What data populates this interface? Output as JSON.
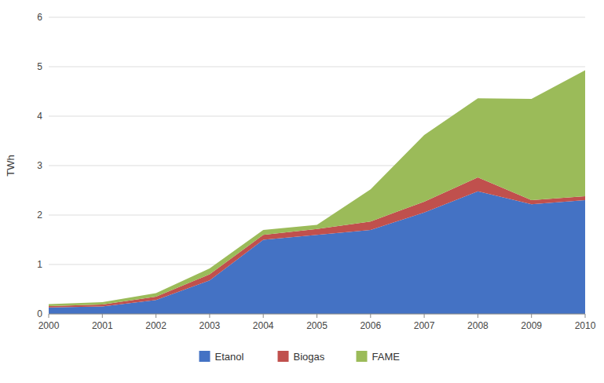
{
  "chart_data": {
    "type": "area",
    "stacked": true,
    "y_label": "TWh",
    "x": [
      2000,
      2001,
      2002,
      2003,
      2004,
      2005,
      2006,
      2007,
      2008,
      2009,
      2010
    ],
    "series": [
      {
        "name": "Etanol",
        "color": "#4472C4",
        "values": [
          0.13,
          0.15,
          0.28,
          0.68,
          1.5,
          1.6,
          1.7,
          2.05,
          2.48,
          2.22,
          2.3
        ]
      },
      {
        "name": "Biogas",
        "color": "#C0504D",
        "values": [
          0.03,
          0.04,
          0.07,
          0.12,
          0.1,
          0.12,
          0.17,
          0.22,
          0.28,
          0.08,
          0.08
        ]
      },
      {
        "name": "FAME",
        "color": "#9BBB59",
        "values": [
          0.04,
          0.05,
          0.07,
          0.12,
          0.1,
          0.08,
          0.65,
          1.35,
          1.6,
          2.05,
          2.55
        ]
      }
    ],
    "xlim": [
      2000,
      2010
    ],
    "xticks": [
      2000,
      2001,
      2002,
      2003,
      2004,
      2005,
      2006,
      2007,
      2008,
      2009,
      2010
    ],
    "ylim": [
      0,
      6
    ],
    "yticks": [
      0,
      1,
      2,
      3,
      4,
      5,
      6
    ],
    "grid": true,
    "legend": "bottom"
  }
}
